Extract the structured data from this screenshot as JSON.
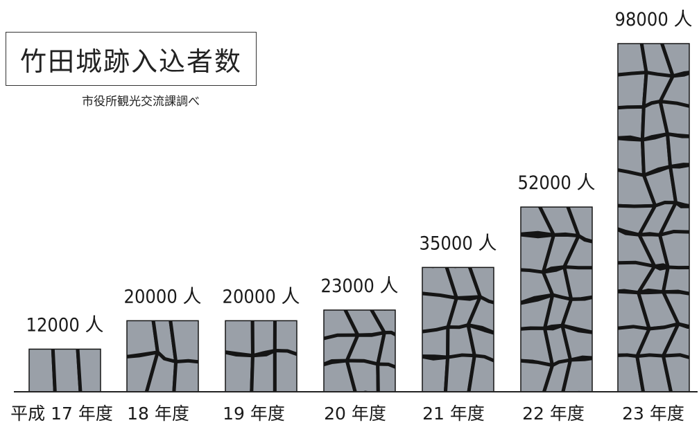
{
  "title": "竹田城跡入込者数",
  "source_note": "市役所観光交流課調べ",
  "colors": {
    "stone_fill": "#9aa0a8",
    "stone_mortar": "#151515",
    "axis": "#222222"
  },
  "chart_data": {
    "type": "bar",
    "title": "竹田城跡入込者数",
    "categories": [
      "平成 17 年度",
      "18 年度",
      "19 年度",
      "20 年度",
      "21 年度",
      "22 年度",
      "23 年度"
    ],
    "values": [
      12000,
      20000,
      20000,
      23000,
      35000,
      52000,
      98000
    ],
    "value_labels": [
      "12000 人",
      "20000 人",
      "20000 人",
      "23000 人",
      "35000 人",
      "52000 人",
      "98000 人"
    ],
    "unit": "人",
    "xlabel": "",
    "ylabel": "",
    "ylim": [
      0,
      98000
    ],
    "grid": false,
    "legend": "none",
    "bar_texture": "stone-wall"
  }
}
